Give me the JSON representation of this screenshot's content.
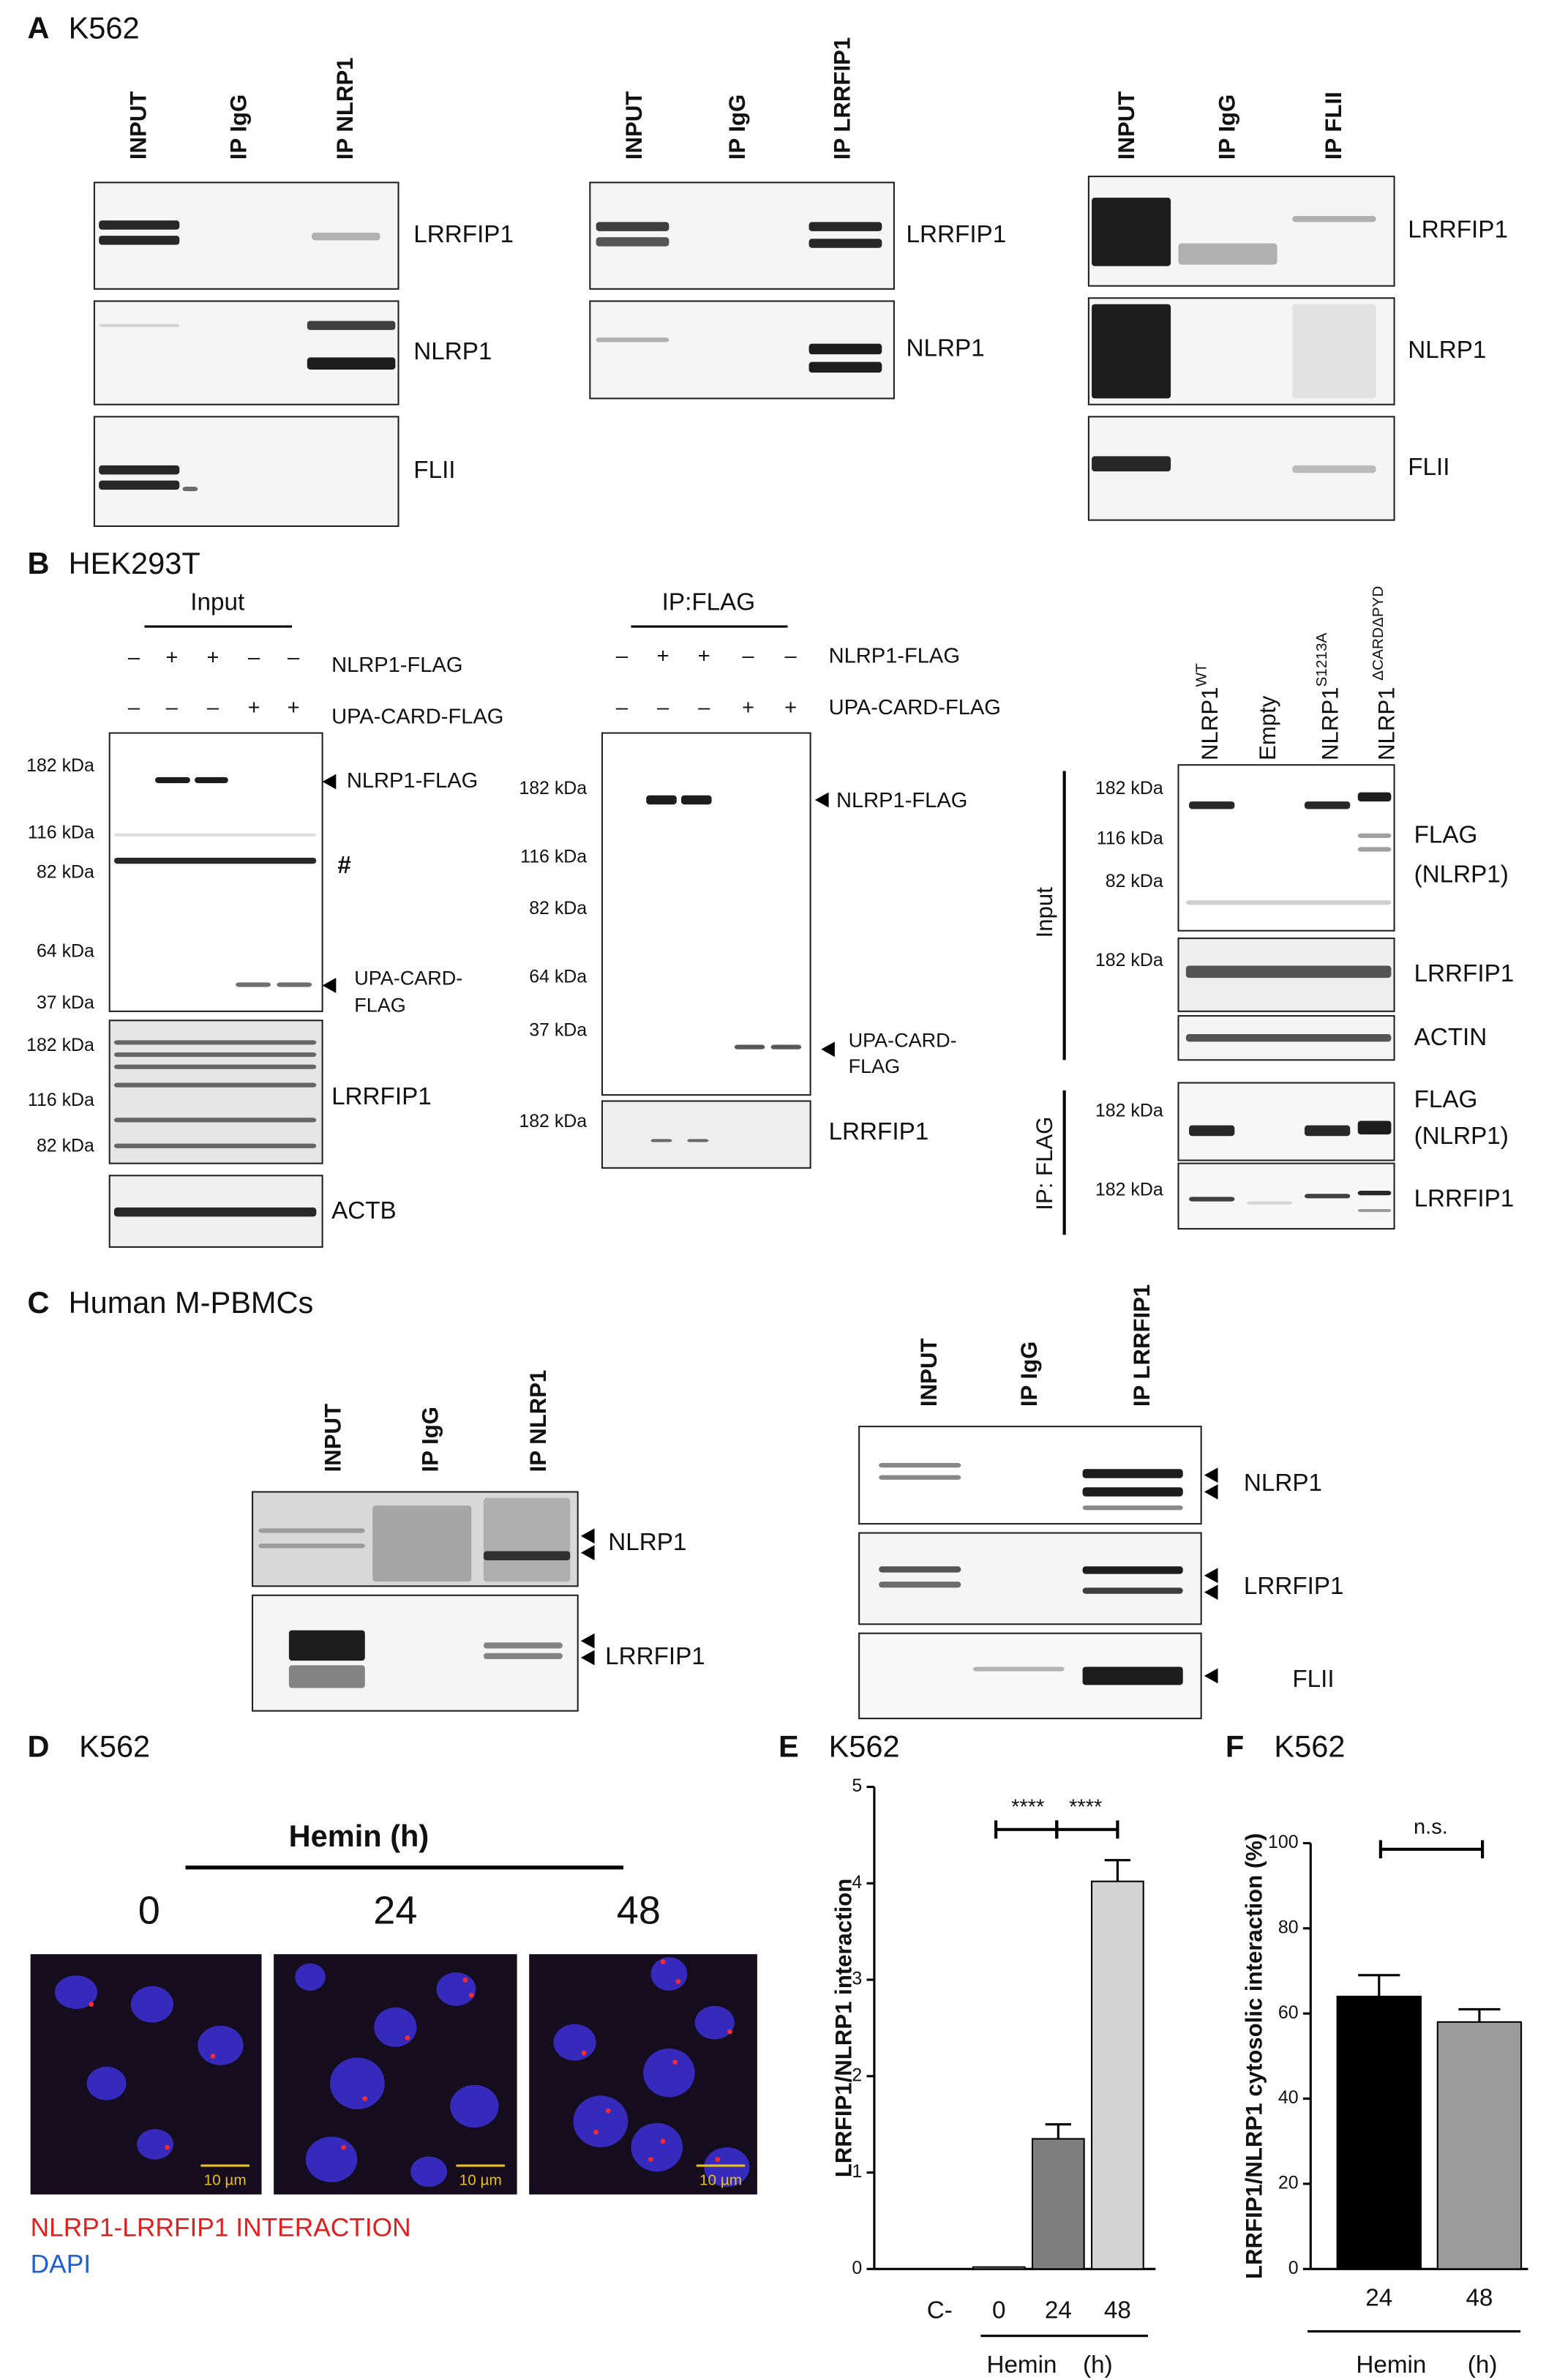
{
  "panels": {
    "A": {
      "letter": "A",
      "cell_line": "K562",
      "blots": [
        {
          "lanes": [
            "INPUT",
            "IP IgG",
            "IP NLRP1"
          ],
          "proteins": [
            "LRRFIP1",
            "NLRP1",
            "FLII"
          ]
        },
        {
          "lanes": [
            "INPUT",
            "IP IgG",
            "IP LRRFIP1"
          ],
          "proteins": [
            "LRRFIP1",
            "NLRP1"
          ]
        },
        {
          "lanes": [
            "INPUT",
            "IP IgG",
            "IP FLII"
          ],
          "proteins": [
            "LRRFIP1",
            "NLRP1",
            "FLII"
          ]
        }
      ]
    },
    "B": {
      "letter": "B",
      "cell_line": "HEK293T",
      "input": {
        "header": "Input",
        "rows": [
          {
            "name": "NLRP1-FLAG",
            "signs": [
              "–",
              "+",
              "+",
              "–",
              "–"
            ]
          },
          {
            "name": "UPA-CARD-FLAG",
            "signs": [
              "–",
              "–",
              "–",
              "+",
              "+"
            ]
          }
        ],
        "markers": [
          "182 kDa",
          "116 kDa",
          "82 kDa",
          "64 kDa",
          "37 kDa"
        ],
        "arrows": [
          "NLRP1-FLAG",
          "#",
          [
            "UPA-CARD-",
            "FLAG"
          ]
        ],
        "lower": {
          "markers": [
            "182 kDa",
            "116 kDa",
            "82 kDa"
          ],
          "protein": "LRRFIP1"
        },
        "loading": "ACTB"
      },
      "ip": {
        "header": "IP:FLAG",
        "rows": [
          {
            "name": "NLRP1-FLAG",
            "signs": [
              "–",
              "+",
              "+",
              "–",
              "–"
            ]
          },
          {
            "name": "UPA-CARD-FLAG",
            "signs": [
              "–",
              "–",
              "–",
              "+",
              "+"
            ]
          }
        ],
        "markers": [
          "182 kDa",
          "116 kDa",
          "82 kDa",
          "64 kDa",
          "37 kDa"
        ],
        "arrows": [
          "NLRP1-FLAG",
          [
            "UPA-CARD-",
            "FLAG"
          ]
        ],
        "lower": {
          "marker": "182 kDa",
          "protein": "LRRFIP1"
        }
      },
      "mutants": {
        "lanes": [
          {
            "name": "NLRP1",
            "sup": "WT"
          },
          {
            "name": "Empty"
          },
          {
            "name": "NLRP1",
            "sup": "S1213A"
          },
          {
            "name": "NLRP1 ",
            "sup": "ΔCARDΔPYD"
          }
        ],
        "input_label": "Input",
        "ip_label": "IP: FLAG",
        "input_blots": [
          {
            "markers": [
              "182 kDa",
              "116 kDa",
              "82 kDa"
            ],
            "protein": [
              "FLAG",
              "(NLRP1)"
            ]
          },
          {
            "markers": [
              "182 kDa"
            ],
            "protein": [
              "LRRFIP1"
            ]
          },
          {
            "protein": [
              "ACTIN"
            ]
          }
        ],
        "ip_blots": [
          {
            "markers": [
              "182 kDa"
            ],
            "protein": [
              "FLAG",
              "(NLRP1)"
            ]
          },
          {
            "markers": [
              "182 kDa"
            ],
            "protein": [
              "LRRFIP1"
            ]
          }
        ]
      }
    },
    "C": {
      "letter": "C",
      "cell_line": "Human M-PBMCs",
      "blots": [
        {
          "lanes": [
            "INPUT",
            "IP IgG",
            "IP NLRP1"
          ],
          "proteins": [
            "NLRP1",
            "LRRFIP1"
          ]
        },
        {
          "lanes": [
            "INPUT",
            "IP IgG",
            "IP LRRFIP1"
          ],
          "proteins": [
            "NLRP1",
            "LRRFIP1",
            "FLII"
          ]
        }
      ]
    },
    "D": {
      "letter": "D",
      "cell_line": "K562",
      "treatment": "Hemin (h)",
      "timepoints": [
        "0",
        "24",
        "48"
      ],
      "scale_bar": "10 µm",
      "legend": [
        "NLRP1-LRRFIP1 INTERACTION",
        "DAPI"
      ]
    }
  },
  "chart_data": [
    {
      "type": "bar",
      "letter": "E",
      "cell_line": "K562",
      "y_label": "LRRFIP1/NLRP1 interaction",
      "categories": [
        "C-",
        "0",
        "24",
        "48"
      ],
      "values": [
        0,
        0.02,
        1.35,
        4.02
      ],
      "errors": [
        null,
        null,
        0.15,
        0.22
      ],
      "colors": [
        "#ffffff",
        "#ffffff",
        "#7f7f7f",
        "#d3d3d3"
      ],
      "ylim": [
        0,
        5
      ],
      "yticks": [
        0,
        1,
        2,
        3,
        4,
        5
      ],
      "group_label": "Hemin",
      "unit": "(h)",
      "significance": [
        "****",
        "****"
      ]
    },
    {
      "type": "bar",
      "letter": "F",
      "cell_line": "K562",
      "y_label": "LRRFIP1/NLRP1 cytosolic interaction (%)",
      "categories": [
        "24",
        "48"
      ],
      "values": [
        64,
        58
      ],
      "errors": [
        5,
        3
      ],
      "colors": [
        "#000000",
        "#9b9b9b"
      ],
      "ylim": [
        0,
        100
      ],
      "yticks": [
        0,
        20,
        40,
        60,
        80,
        100
      ],
      "group_label": "Hemin",
      "unit": "(h)",
      "significance": "n.s."
    }
  ]
}
